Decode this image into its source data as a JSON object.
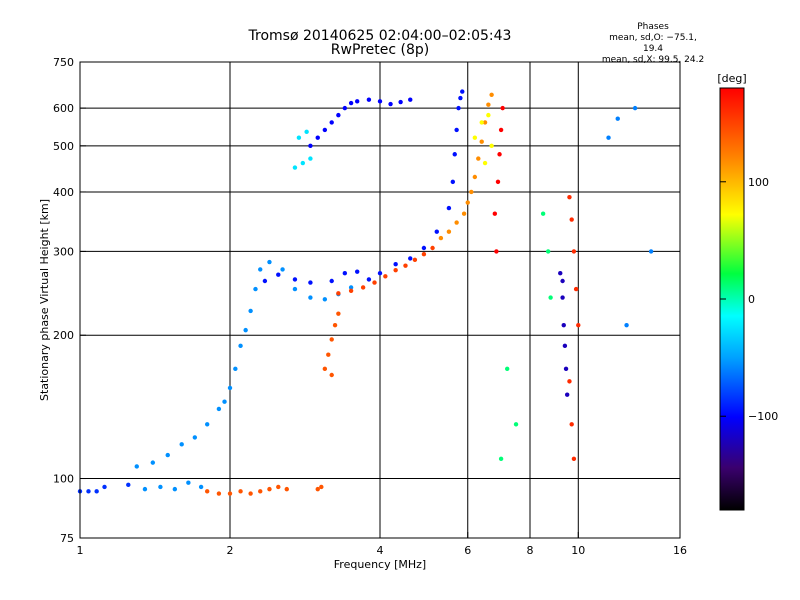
{
  "header": {
    "title_line1": "Tromsø 20140625 02:04:00–02:05:43",
    "title_line2": "RwPretec (8p)"
  },
  "stats": {
    "heading": "Phases",
    "line_o": "mean, sd,O: −75.1, 19.4",
    "line_x": "mean, sd,X:  99.5, 24.2"
  },
  "chart_data": {
    "type": "scatter",
    "xlabel": "Frequency [MHz]",
    "ylabel": "Stationary phase Virtual Height [km]",
    "x_scale": "log",
    "y_scale": "log",
    "xlim": [
      1,
      16
    ],
    "ylim": [
      75,
      750
    ],
    "x_ticks": [
      1,
      2,
      4,
      6,
      8,
      10,
      16
    ],
    "x_tick_labels": [
      "1",
      "2",
      "4",
      "6",
      "8",
      "10",
      "16"
    ],
    "x_gridlines": [
      2,
      4,
      6,
      8,
      10
    ],
    "y_ticks": [
      75,
      100,
      200,
      300,
      400,
      500,
      600,
      750
    ],
    "y_tick_labels": [
      "75",
      "100",
      "200",
      "300",
      "400",
      "500",
      "600",
      "750"
    ],
    "y_gridlines": [
      100,
      200,
      300,
      400,
      500,
      600
    ],
    "grid": true,
    "colorbar": {
      "label": "[deg]",
      "range": [
        -180,
        180
      ],
      "ticks": [
        100,
        0,
        -100
      ],
      "tick_labels": [
        "100",
        "0",
        "−100"
      ]
    },
    "series": [
      {
        "color_deg": -85,
        "points": [
          [
            1.0,
            94
          ],
          [
            1.04,
            94
          ],
          [
            1.08,
            94
          ],
          [
            1.12,
            96
          ],
          [
            1.25,
            97
          ]
        ]
      },
      {
        "color_deg": -55,
        "points": [
          [
            1.35,
            95
          ],
          [
            1.45,
            96
          ],
          [
            1.55,
            95
          ],
          [
            1.65,
            98
          ],
          [
            1.75,
            96
          ],
          [
            1.3,
            106
          ],
          [
            1.4,
            108
          ],
          [
            1.5,
            112
          ],
          [
            1.6,
            118
          ],
          [
            1.7,
            122
          ],
          [
            1.8,
            130
          ],
          [
            1.9,
            140
          ],
          [
            1.95,
            145
          ],
          [
            2.0,
            155
          ],
          [
            2.05,
            170
          ],
          [
            2.1,
            190
          ],
          [
            2.15,
            205
          ],
          [
            2.2,
            225
          ],
          [
            2.25,
            250
          ],
          [
            2.3,
            275
          ],
          [
            2.4,
            285
          ],
          [
            2.55,
            275
          ],
          [
            2.7,
            250
          ],
          [
            2.9,
            240
          ],
          [
            3.1,
            238
          ],
          [
            3.3,
            244
          ],
          [
            3.5,
            252
          ]
        ]
      },
      {
        "color_deg": 140,
        "points": [
          [
            1.8,
            94
          ],
          [
            1.9,
            93
          ],
          [
            2.0,
            93
          ],
          [
            2.1,
            94
          ],
          [
            2.2,
            93
          ],
          [
            2.3,
            94
          ],
          [
            2.4,
            95
          ],
          [
            2.5,
            96
          ],
          [
            2.6,
            95
          ],
          [
            3.0,
            95
          ],
          [
            3.05,
            96
          ],
          [
            3.1,
            170
          ],
          [
            3.15,
            182
          ],
          [
            3.2,
            196
          ],
          [
            3.25,
            210
          ],
          [
            3.3,
            222
          ],
          [
            3.2,
            165
          ]
        ]
      },
      {
        "color_deg": -95,
        "points": [
          [
            2.35,
            260
          ],
          [
            2.5,
            268
          ],
          [
            2.7,
            262
          ],
          [
            2.9,
            258
          ],
          [
            3.2,
            260
          ],
          [
            3.4,
            270
          ],
          [
            3.6,
            272
          ],
          [
            3.8,
            262
          ],
          [
            4.0,
            270
          ],
          [
            4.3,
            282
          ],
          [
            4.6,
            290
          ],
          [
            4.9,
            305
          ],
          [
            5.2,
            330
          ],
          [
            5.5,
            370
          ],
          [
            5.6,
            420
          ],
          [
            5.65,
            480
          ],
          [
            5.7,
            540
          ],
          [
            5.75,
            600
          ],
          [
            5.8,
            630
          ],
          [
            5.85,
            650
          ]
        ]
      },
      {
        "color_deg": -100,
        "points": [
          [
            2.9,
            500
          ],
          [
            3.0,
            520
          ],
          [
            3.1,
            540
          ],
          [
            3.2,
            560
          ],
          [
            3.3,
            580
          ],
          [
            3.4,
            600
          ],
          [
            3.5,
            615
          ],
          [
            3.6,
            620
          ],
          [
            3.8,
            625
          ],
          [
            4.0,
            620
          ],
          [
            4.2,
            612
          ],
          [
            4.4,
            618
          ],
          [
            4.6,
            625
          ]
        ]
      },
      {
        "color_deg": -25,
        "points": [
          [
            2.7,
            450
          ],
          [
            2.8,
            460
          ],
          [
            2.9,
            470
          ],
          [
            2.75,
            520
          ],
          [
            2.85,
            535
          ]
        ]
      },
      {
        "color_deg": 150,
        "points": [
          [
            3.3,
            245
          ],
          [
            3.5,
            248
          ],
          [
            3.7,
            252
          ],
          [
            3.9,
            258
          ],
          [
            4.1,
            266
          ],
          [
            4.3,
            274
          ],
          [
            4.5,
            280
          ],
          [
            4.7,
            288
          ],
          [
            4.9,
            296
          ],
          [
            5.1,
            305
          ]
        ]
      },
      {
        "color_deg": 115,
        "points": [
          [
            5.3,
            320
          ],
          [
            5.5,
            330
          ],
          [
            5.7,
            345
          ],
          [
            5.9,
            360
          ],
          [
            6.0,
            380
          ],
          [
            6.1,
            400
          ],
          [
            6.2,
            430
          ],
          [
            6.3,
            470
          ],
          [
            6.4,
            510
          ],
          [
            6.5,
            560
          ],
          [
            6.6,
            610
          ],
          [
            6.7,
            640
          ]
        ]
      },
      {
        "color_deg": 70,
        "points": [
          [
            6.2,
            520
          ],
          [
            6.4,
            560
          ],
          [
            6.6,
            580
          ],
          [
            6.5,
            460
          ],
          [
            6.7,
            500
          ]
        ]
      },
      {
        "color_deg": 180,
        "points": [
          [
            6.9,
            420
          ],
          [
            6.95,
            480
          ],
          [
            7.0,
            540
          ],
          [
            7.05,
            600
          ],
          [
            6.8,
            360
          ],
          [
            6.85,
            300
          ]
        ]
      },
      {
        "color_deg": -120,
        "points": [
          [
            9.2,
            270
          ],
          [
            9.3,
            240
          ],
          [
            9.35,
            210
          ],
          [
            9.4,
            190
          ],
          [
            9.45,
            170
          ],
          [
            9.5,
            150
          ],
          [
            9.3,
            260
          ]
        ]
      },
      {
        "color_deg": 160,
        "points": [
          [
            9.6,
            390
          ],
          [
            9.7,
            350
          ],
          [
            9.8,
            300
          ],
          [
            9.9,
            250
          ],
          [
            10.0,
            210
          ],
          [
            9.6,
            160
          ],
          [
            9.7,
            130
          ],
          [
            9.8,
            110
          ]
        ]
      },
      {
        "color_deg": -60,
        "points": [
          [
            12.0,
            570
          ],
          [
            13.0,
            600
          ],
          [
            14.0,
            300
          ],
          [
            12.5,
            210
          ],
          [
            11.5,
            520
          ]
        ]
      },
      {
        "color_deg": 10,
        "points": [
          [
            8.5,
            360
          ],
          [
            8.7,
            300
          ],
          [
            8.8,
            240
          ],
          [
            7.2,
            170
          ],
          [
            7.5,
            130
          ],
          [
            7.0,
            110
          ]
        ]
      }
    ]
  }
}
